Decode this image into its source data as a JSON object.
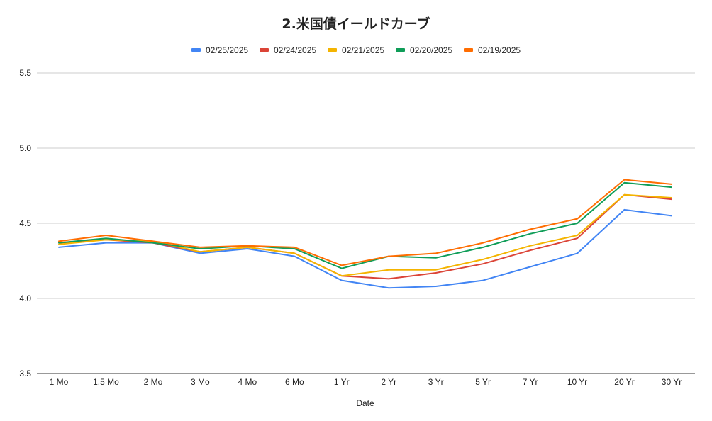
{
  "chart_data": {
    "type": "line",
    "title": "2.米国債イールドカーブ",
    "xlabel": "Date",
    "ylabel": "",
    "categories": [
      "1 Mo",
      "1.5 Mo",
      "2 Mo",
      "3 Mo",
      "4 Mo",
      "6 Mo",
      "1 Yr",
      "2 Yr",
      "3 Yr",
      "5 Yr",
      "7 Yr",
      "10 Yr",
      "20 Yr",
      "30 Yr"
    ],
    "ylim": [
      3.5,
      5.5
    ],
    "yticks": [
      "3.5",
      "4.0",
      "4.5",
      "5.0",
      "5.5"
    ],
    "grid": true,
    "legend_position": "top",
    "series": [
      {
        "name": "02/25/2025",
        "color": "#4285f4",
        "values": [
          4.34,
          4.37,
          4.37,
          4.3,
          4.33,
          4.28,
          4.12,
          4.07,
          4.08,
          4.12,
          4.21,
          4.3,
          4.59,
          4.55
        ]
      },
      {
        "name": "02/24/2025",
        "color": "#db4437",
        "values": [
          4.37,
          4.39,
          4.37,
          4.31,
          4.34,
          4.3,
          4.15,
          4.13,
          4.17,
          4.23,
          4.32,
          4.4,
          4.69,
          4.66
        ]
      },
      {
        "name": "02/21/2025",
        "color": "#f4b400",
        "values": [
          4.36,
          4.39,
          4.38,
          4.31,
          4.34,
          4.3,
          4.15,
          4.19,
          4.19,
          4.26,
          4.35,
          4.42,
          4.69,
          4.67
        ]
      },
      {
        "name": "02/20/2025",
        "color": "#0f9d58",
        "values": [
          4.37,
          4.4,
          4.37,
          4.33,
          4.35,
          4.33,
          4.2,
          4.28,
          4.27,
          4.34,
          4.43,
          4.5,
          4.77,
          4.74
        ]
      },
      {
        "name": "02/19/2025",
        "color": "#ff6d01",
        "values": [
          4.38,
          4.42,
          4.38,
          4.34,
          4.35,
          4.34,
          4.22,
          4.28,
          4.3,
          4.37,
          4.46,
          4.53,
          4.79,
          4.76
        ]
      }
    ]
  }
}
